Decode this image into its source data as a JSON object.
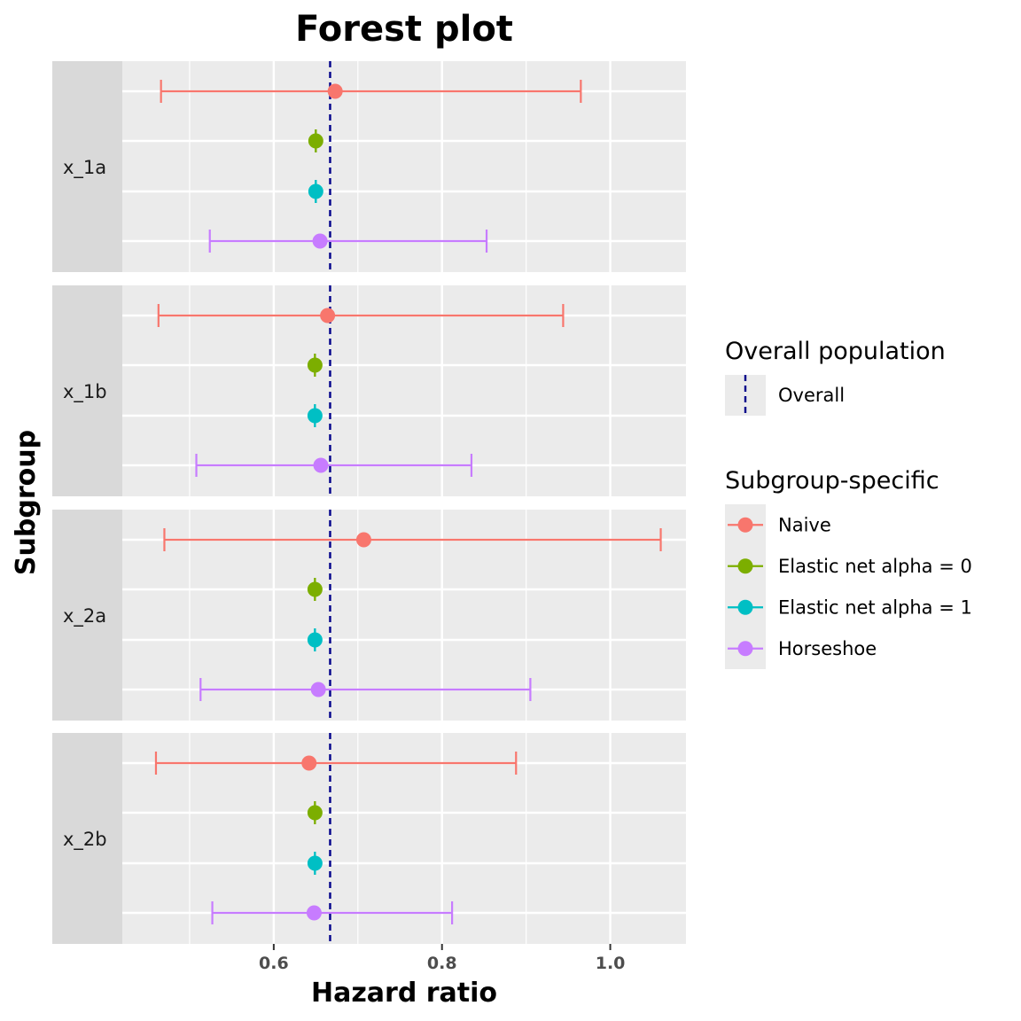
{
  "chart_data": {
    "type": "forest",
    "title": "Forest plot",
    "xlabel": "Hazard ratio",
    "ylabel": "Subgroup",
    "xlim": [
      0.42,
      1.09
    ],
    "x_ticks": [
      0.6,
      0.8,
      1.0
    ],
    "x_tick_labels": [
      "0.6",
      "0.8",
      "1.0"
    ],
    "reference_line": {
      "value": 0.667,
      "color": "#00008b",
      "style": "dashed",
      "label": "Overall"
    },
    "grid": true,
    "legend": {
      "position": "right",
      "reference_title": "Overall population",
      "series_title": "Subgroup-specific"
    },
    "series": [
      {
        "name": "Naive",
        "color": "#F8766D"
      },
      {
        "name": "Elastic net alpha = 0",
        "color": "#7CAE00"
      },
      {
        "name": "Elastic net alpha = 1",
        "color": "#00BFC4"
      },
      {
        "name": "Horseshoe",
        "color": "#C77CFF"
      }
    ],
    "subgroups": [
      {
        "label": "x_1a",
        "estimates": [
          {
            "series": "Naive",
            "est": 0.673,
            "lower": 0.466,
            "upper": 0.965
          },
          {
            "series": "Elastic net alpha = 0",
            "est": 0.65,
            "lower": 0.65,
            "upper": 0.65
          },
          {
            "series": "Elastic net alpha = 1",
            "est": 0.65,
            "lower": 0.65,
            "upper": 0.65
          },
          {
            "series": "Horseshoe",
            "est": 0.655,
            "lower": 0.524,
            "upper": 0.853
          }
        ]
      },
      {
        "label": "x_1b",
        "estimates": [
          {
            "series": "Naive",
            "est": 0.664,
            "lower": 0.463,
            "upper": 0.944
          },
          {
            "series": "Elastic net alpha = 0",
            "est": 0.649,
            "lower": 0.649,
            "upper": 0.649
          },
          {
            "series": "Elastic net alpha = 1",
            "est": 0.649,
            "lower": 0.649,
            "upper": 0.649
          },
          {
            "series": "Horseshoe",
            "est": 0.656,
            "lower": 0.508,
            "upper": 0.835
          }
        ]
      },
      {
        "label": "x_2a",
        "estimates": [
          {
            "series": "Naive",
            "est": 0.707,
            "lower": 0.47,
            "upper": 1.06
          },
          {
            "series": "Elastic net alpha = 0",
            "est": 0.649,
            "lower": 0.649,
            "upper": 0.649
          },
          {
            "series": "Elastic net alpha = 1",
            "est": 0.649,
            "lower": 0.649,
            "upper": 0.649
          },
          {
            "series": "Horseshoe",
            "est": 0.653,
            "lower": 0.513,
            "upper": 0.905
          }
        ]
      },
      {
        "label": "x_2b",
        "estimates": [
          {
            "series": "Naive",
            "est": 0.642,
            "lower": 0.46,
            "upper": 0.888
          },
          {
            "series": "Elastic net alpha = 0",
            "est": 0.649,
            "lower": 0.649,
            "upper": 0.649
          },
          {
            "series": "Elastic net alpha = 1",
            "est": 0.649,
            "lower": 0.649,
            "upper": 0.649
          },
          {
            "series": "Horseshoe",
            "est": 0.648,
            "lower": 0.527,
            "upper": 0.812
          }
        ]
      }
    ]
  }
}
